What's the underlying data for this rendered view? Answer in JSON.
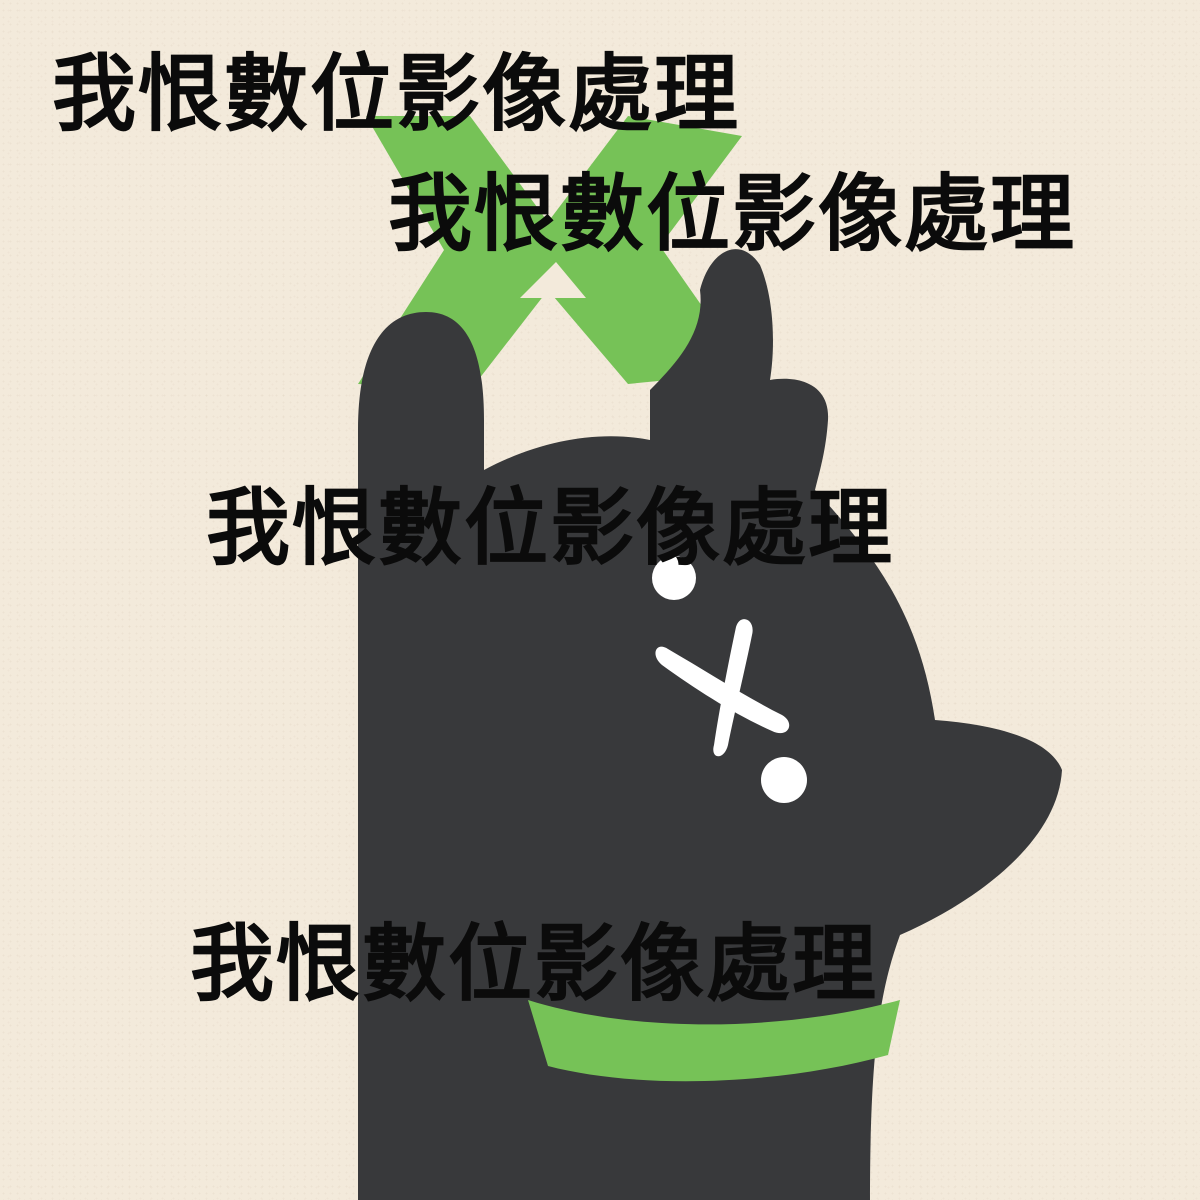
{
  "captions": [
    "我恨數位影像處理",
    "我恨數位影像處理",
    "我恨數位影像處理",
    "我恨數位影像處理"
  ],
  "illustration": {
    "subject": "black cat raising a paw holding a green x-shaped bow",
    "icons": [
      "cat-silhouette",
      "x-bow-icon",
      "x-eye-icon",
      "dot-eye-icon",
      "collar-icon"
    ]
  },
  "colors": {
    "background": "#f3eadb",
    "cat": "#38393b",
    "accent_green": "#76c257",
    "eye_white": "#ffffff",
    "text": "#0b0b0b"
  }
}
